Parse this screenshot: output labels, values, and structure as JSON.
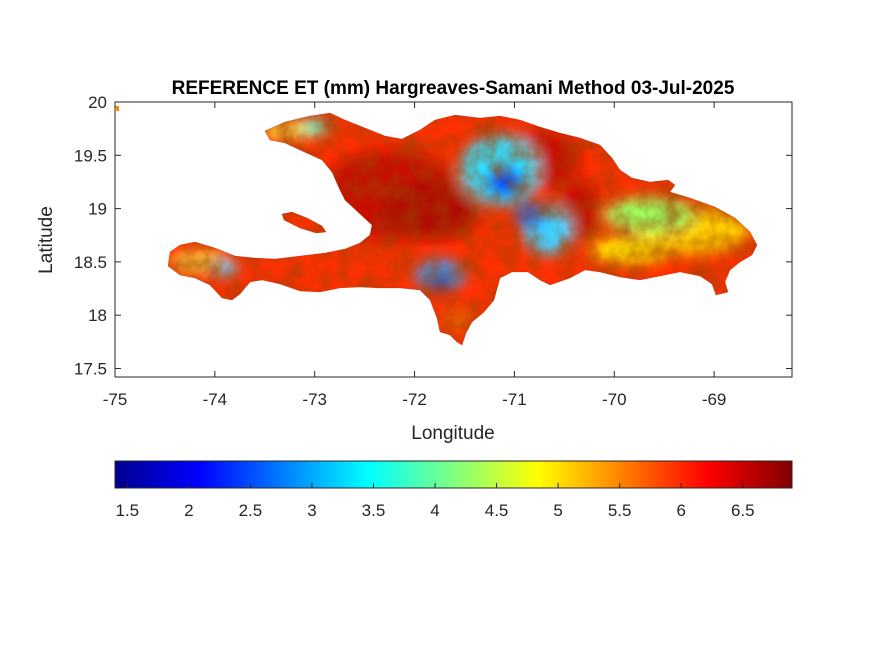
{
  "title": "REFERENCE ET (mm) Hargreaves-Samani Method  03-Jul-2025",
  "xlabel": "Longitude",
  "ylabel": "Latitude",
  "xticks": [
    "-75",
    "-74",
    "-73",
    "-72",
    "-71",
    "-70",
    "-69"
  ],
  "yticks": [
    "20",
    "19.5",
    "19",
    "18.5",
    "18",
    "17.5"
  ],
  "colorbar": {
    "colormap": "jet",
    "ticks": [
      "1.5",
      "2",
      "2.5",
      "3",
      "3.5",
      "4",
      "4.5",
      "5",
      "5.5",
      "6",
      "6.5"
    ]
  },
  "chart_data": {
    "type": "heatmap",
    "title": "REFERENCE ET (mm) Hargreaves-Samani Method  03-Jul-2025",
    "xlabel": "Longitude",
    "ylabel": "Latitude",
    "xlim": [
      -75,
      -68.22
    ],
    "ylim": [
      17.42,
      20
    ],
    "clim": [
      1.4,
      6.9
    ],
    "colormap": "jet",
    "region": "Hispaniola (Haiti and Dominican Republic)",
    "value_range_observed": [
      1.8,
      6.9
    ],
    "dominant_values": "5.5-6.9 over most of Haiti and western Dominican Republic",
    "low_value_zones": [
      {
        "lon": -71.3,
        "lat": 19.25,
        "value": 2.0
      },
      {
        "lon": -71.8,
        "lat": 18.35,
        "value": 2.2
      },
      {
        "lon": -70.9,
        "lat": 18.85,
        "value": 3.0
      },
      {
        "lon": -74.1,
        "lat": 18.45,
        "value": 3.6
      },
      {
        "lon": -73.3,
        "lat": 19.75,
        "value": 3.8
      },
      {
        "lon": -69.6,
        "lat": 18.95,
        "value": 4.3
      }
    ]
  }
}
